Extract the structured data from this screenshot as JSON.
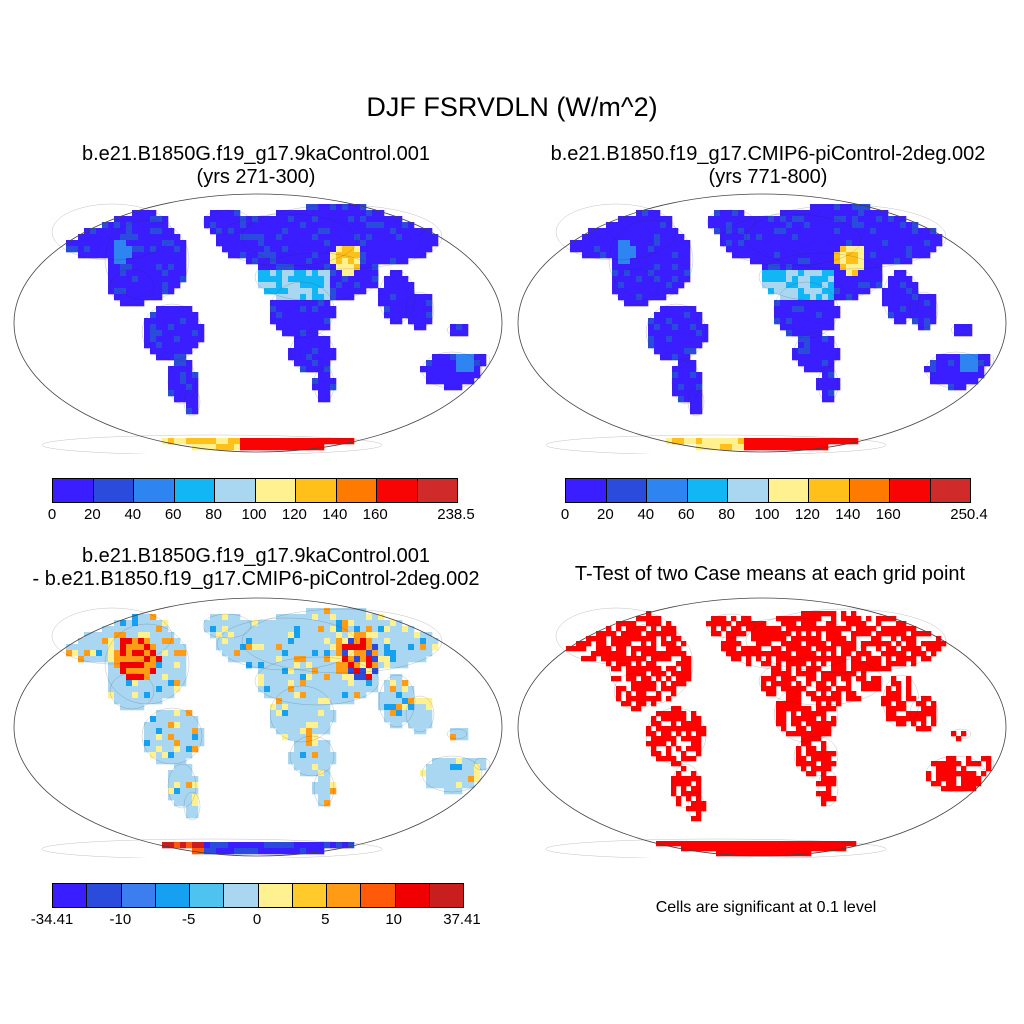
{
  "figure": {
    "title": "DJF FSRVDLN (W/m^2)",
    "panel1": {
      "title_line1": "b.e21.B1850G.f19_g17.9kaControl.001",
      "title_line2": "(yrs 271-300)",
      "colorbar": {
        "colors": [
          "#3a1eff",
          "#2a4bdc",
          "#2e84f0",
          "#13b6f4",
          "#a9d6f0",
          "#fff190",
          "#ffc01a",
          "#ff7a00",
          "#f80404",
          "#d12a2a"
        ],
        "labels": [
          "0",
          "20",
          "40",
          "60",
          "80",
          "100",
          "120",
          "140",
          "160",
          "238.5"
        ]
      }
    },
    "panel2": {
      "title_line1": "b.e21.B1850.f19_g17.CMIP6-piControl-2deg.002",
      "title_line2": "(yrs 771-800)",
      "colorbar": {
        "colors": [
          "#3a1eff",
          "#2a4bdc",
          "#2e84f0",
          "#13b6f4",
          "#a9d6f0",
          "#fff190",
          "#ffc01a",
          "#ff7a00",
          "#f80404",
          "#d12a2a"
        ],
        "labels": [
          "0",
          "20",
          "40",
          "60",
          "80",
          "100",
          "120",
          "140",
          "160",
          "250.4"
        ]
      }
    },
    "panel3": {
      "title_line1": "b.e21.B1850G.f19_g17.9kaControl.001",
      "title_line2": "- b.e21.B1850.f19_g17.CMIP6-piControl-2deg.002",
      "colorbar": {
        "colors": [
          "#3a1eff",
          "#2a4bdc",
          "#3c7ef0",
          "#16a0f2",
          "#4fc3f0",
          "#a9d6f0",
          "#fff190",
          "#ffcb2a",
          "#ff9b14",
          "#ff5a0a",
          "#f00000",
          "#c81e1e"
        ],
        "labels": [
          "-34.41",
          "-10",
          "-5",
          "0",
          "5",
          "10",
          "37.41"
        ]
      }
    },
    "panel4": {
      "title": "T-Test of two Case means at each grid point",
      "note": "Cells are significant at 0.1 level",
      "sig_color": "#ff0000"
    }
  }
}
